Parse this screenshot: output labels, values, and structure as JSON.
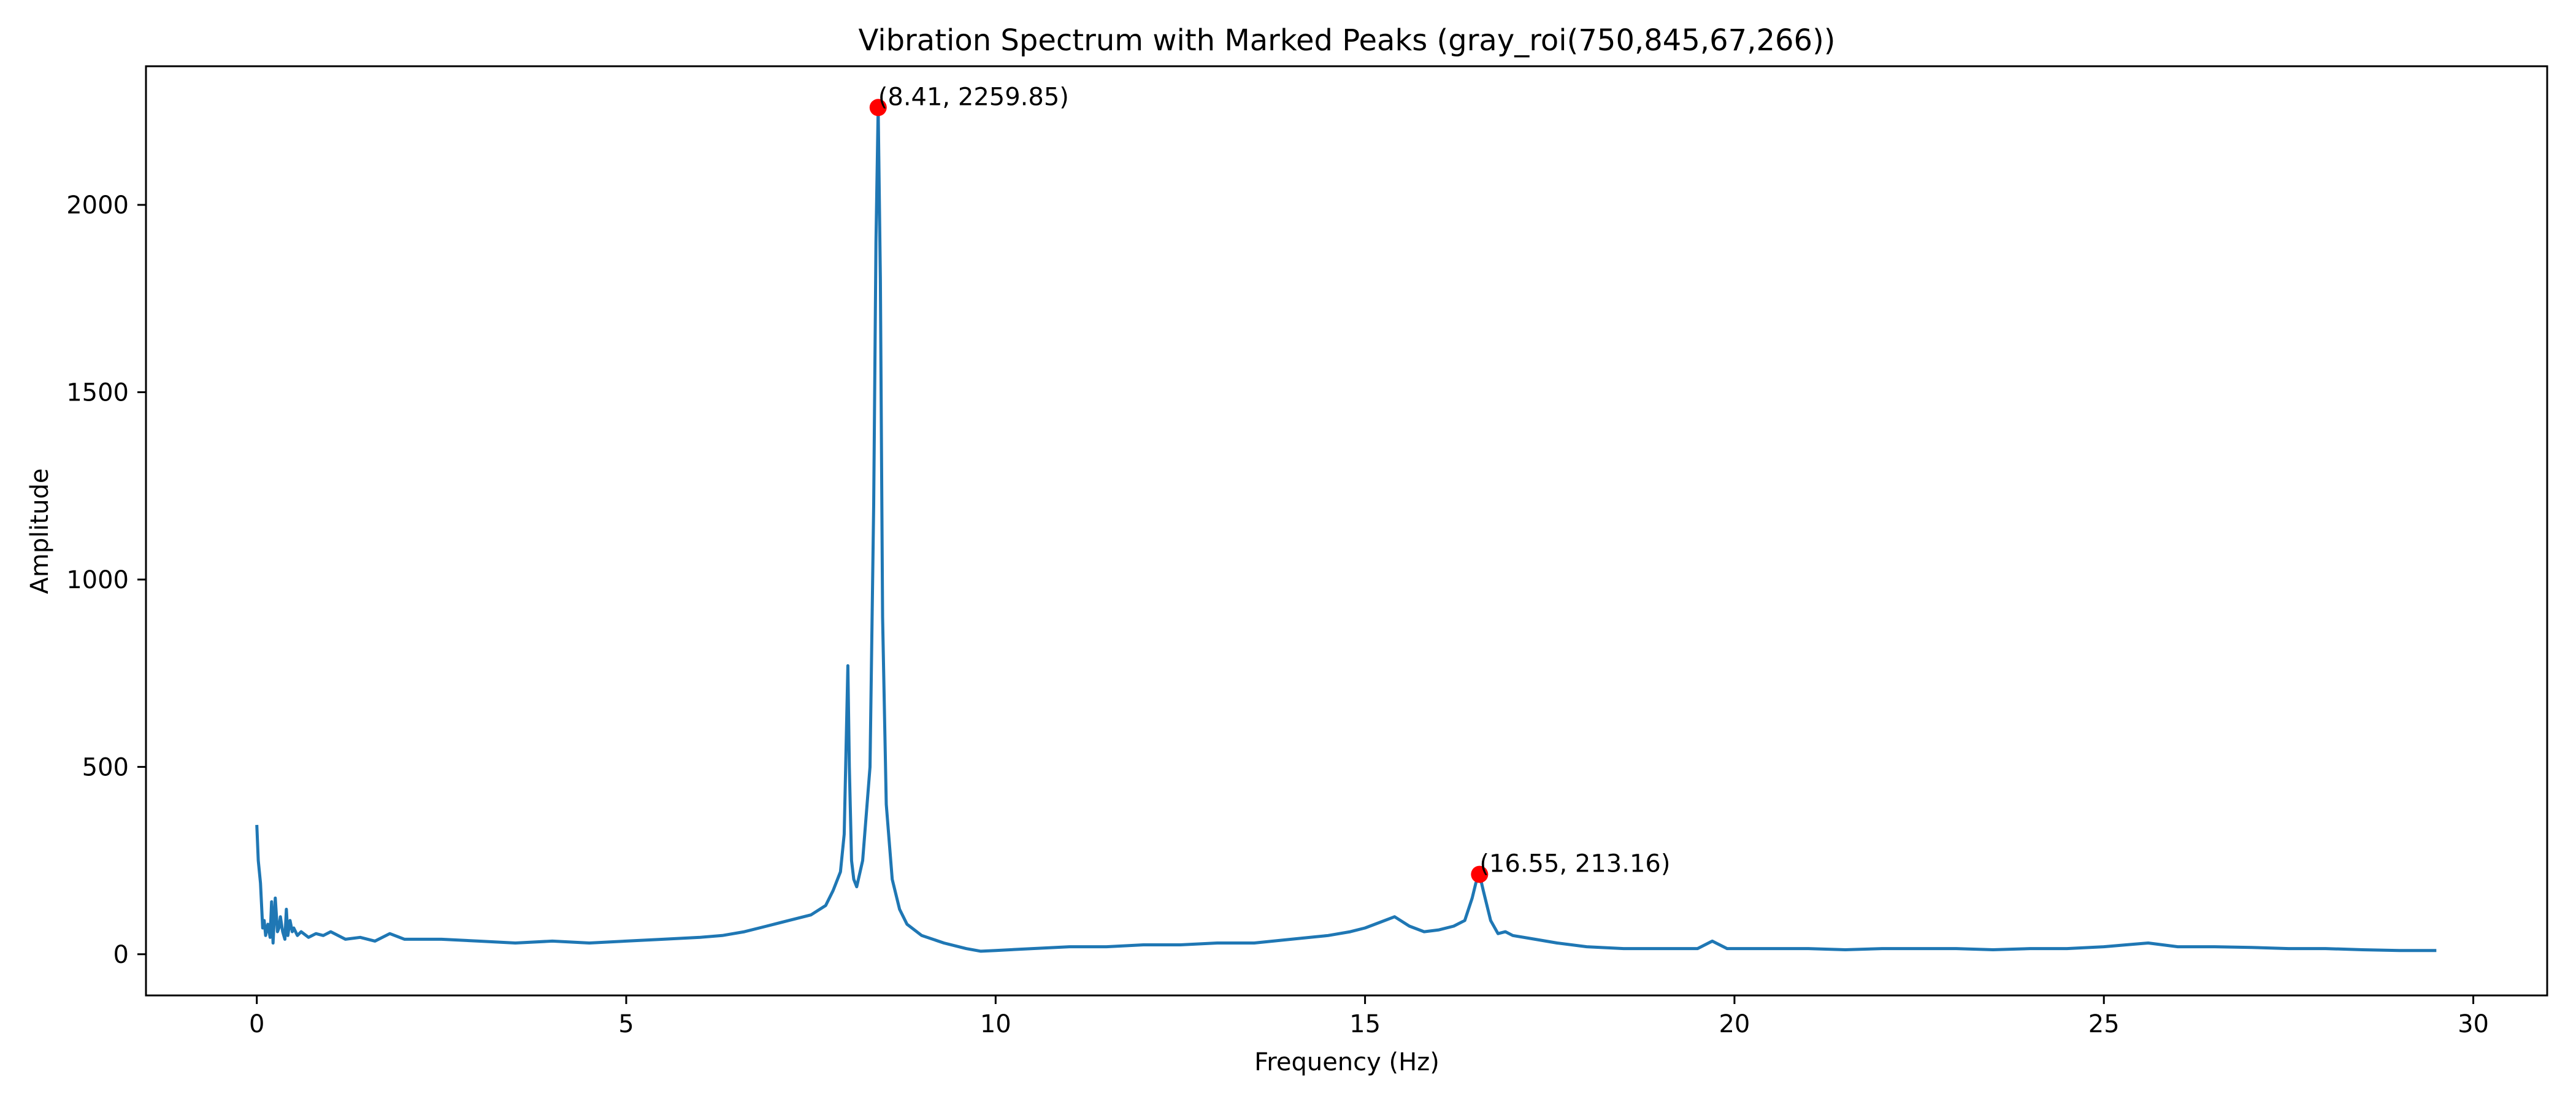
{
  "chart_data": {
    "type": "line",
    "title": "Vibration Spectrum with Marked Peaks (gray_roi(750,845,67,266))",
    "xlabel": "Frequency (Hz)",
    "ylabel": "Amplitude",
    "xlim": [
      -1.5,
      31.0
    ],
    "ylim": [
      -110,
      2370
    ],
    "xticks": [
      0,
      5,
      10,
      15,
      20,
      25,
      30
    ],
    "yticks": [
      0,
      500,
      1000,
      1500,
      2000
    ],
    "grid": false,
    "legend": "none",
    "colors": {
      "line": "#1f77b4",
      "peak_marker": "#ff0000",
      "axes": "#000000"
    },
    "series": [
      {
        "x": [
          0.0,
          0.02,
          0.05,
          0.08,
          0.1,
          0.12,
          0.15,
          0.18,
          0.2,
          0.22,
          0.25,
          0.28,
          0.3,
          0.32,
          0.35,
          0.38,
          0.4,
          0.42,
          0.45,
          0.48,
          0.5,
          0.55,
          0.6,
          0.7,
          0.8,
          0.9,
          1.0,
          1.2,
          1.4,
          1.6,
          1.8,
          2.0,
          2.5,
          3.0,
          3.5,
          4.0,
          4.5,
          5.0,
          5.5,
          6.0,
          6.3,
          6.6,
          6.9,
          7.2,
          7.5,
          7.7,
          7.8,
          7.9,
          7.95,
          8.0,
          8.02,
          8.05,
          8.08,
          8.12,
          8.2,
          8.3,
          8.35,
          8.38,
          8.41,
          8.44,
          8.47,
          8.52,
          8.6,
          8.7,
          8.8,
          9.0,
          9.3,
          9.6,
          9.8,
          10.0,
          10.5,
          11.0,
          11.5,
          12.0,
          12.5,
          13.0,
          13.5,
          14.0,
          14.5,
          14.8,
          15.0,
          15.2,
          15.4,
          15.6,
          15.8,
          16.0,
          16.2,
          16.35,
          16.45,
          16.5,
          16.55,
          16.6,
          16.7,
          16.8,
          16.9,
          17.0,
          17.3,
          17.6,
          18.0,
          18.5,
          19.0,
          19.5,
          19.7,
          19.9,
          20.5,
          21.0,
          21.5,
          22.0,
          22.5,
          23.0,
          23.5,
          24.0,
          24.5,
          25.0,
          25.3,
          25.6,
          26.0,
          26.5,
          27.0,
          27.5,
          28.0,
          28.5,
          29.0,
          29.5
        ],
        "y": [
          345,
          250,
          190,
          70,
          90,
          50,
          80,
          45,
          140,
          30,
          150,
          60,
          70,
          100,
          60,
          40,
          120,
          50,
          90,
          60,
          70,
          50,
          60,
          45,
          55,
          50,
          60,
          40,
          45,
          35,
          55,
          40,
          40,
          35,
          30,
          35,
          30,
          35,
          40,
          45,
          50,
          60,
          75,
          90,
          105,
          130,
          170,
          220,
          320,
          770,
          500,
          250,
          200,
          180,
          250,
          500,
          1200,
          1900,
          2259.85,
          1800,
          900,
          400,
          200,
          120,
          80,
          50,
          30,
          15,
          8,
          10,
          15,
          20,
          20,
          25,
          25,
          30,
          30,
          40,
          50,
          60,
          70,
          85,
          100,
          75,
          60,
          65,
          75,
          90,
          150,
          190,
          213.16,
          170,
          90,
          55,
          60,
          50,
          40,
          30,
          20,
          15,
          15,
          15,
          35,
          15,
          15,
          15,
          12,
          15,
          15,
          15,
          12,
          15,
          15,
          20,
          25,
          30,
          20,
          20,
          18,
          15,
          15,
          12,
          10,
          10
        ]
      }
    ],
    "peaks": [
      {
        "x": 8.41,
        "y": 2259.85,
        "label": "(8.41, 2259.85)"
      },
      {
        "x": 16.55,
        "y": 213.16,
        "label": "(16.55, 213.16)"
      }
    ]
  }
}
